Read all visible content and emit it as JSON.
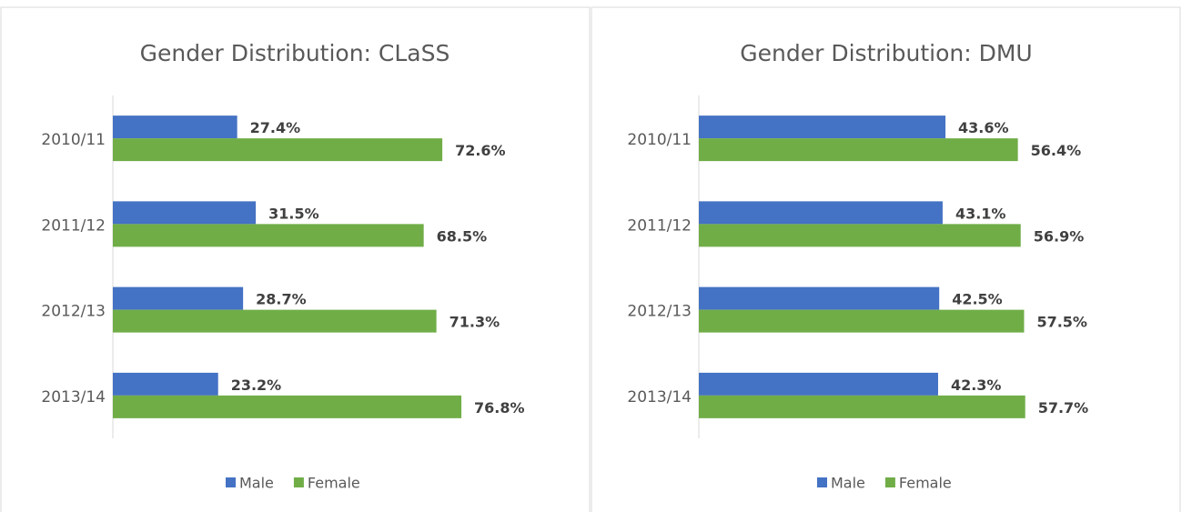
{
  "chart_data": [
    {
      "type": "bar",
      "orientation": "horizontal",
      "title": "Gender Distribution: CLaSS",
      "categories": [
        "2010/11",
        "2011/12",
        "2012/13",
        "2013/14"
      ],
      "series": [
        {
          "name": "Male",
          "color": "#4472c4",
          "values": [
            27.4,
            31.5,
            28.7,
            23.2
          ],
          "value_labels": [
            "27.4%",
            "31.5%",
            "28.7%",
            "23.2%"
          ]
        },
        {
          "name": "Female",
          "color": "#70ad47",
          "values": [
            72.6,
            68.5,
            71.3,
            76.8
          ],
          "value_labels": [
            "72.6%",
            "68.5%",
            "71.3%",
            "76.8%"
          ]
        }
      ],
      "xlim": [
        0,
        80
      ],
      "legend": "bottom"
    },
    {
      "type": "bar",
      "orientation": "horizontal",
      "title": "Gender Distribution: DMU",
      "categories": [
        "2010/11",
        "2011/12",
        "2012/13",
        "2013/14"
      ],
      "series": [
        {
          "name": "Male",
          "color": "#4472c4",
          "values": [
            43.6,
            43.1,
            42.5,
            42.3
          ],
          "value_labels": [
            "43.6%",
            "43.1%",
            "42.5%",
            "42.3%"
          ]
        },
        {
          "name": "Female",
          "color": "#70ad47",
          "values": [
            56.4,
            56.9,
            57.5,
            57.7
          ],
          "value_labels": [
            "56.4%",
            "56.9%",
            "57.5%",
            "57.7%"
          ]
        }
      ],
      "xlim": [
        0,
        60
      ],
      "legend": "bottom"
    }
  ]
}
